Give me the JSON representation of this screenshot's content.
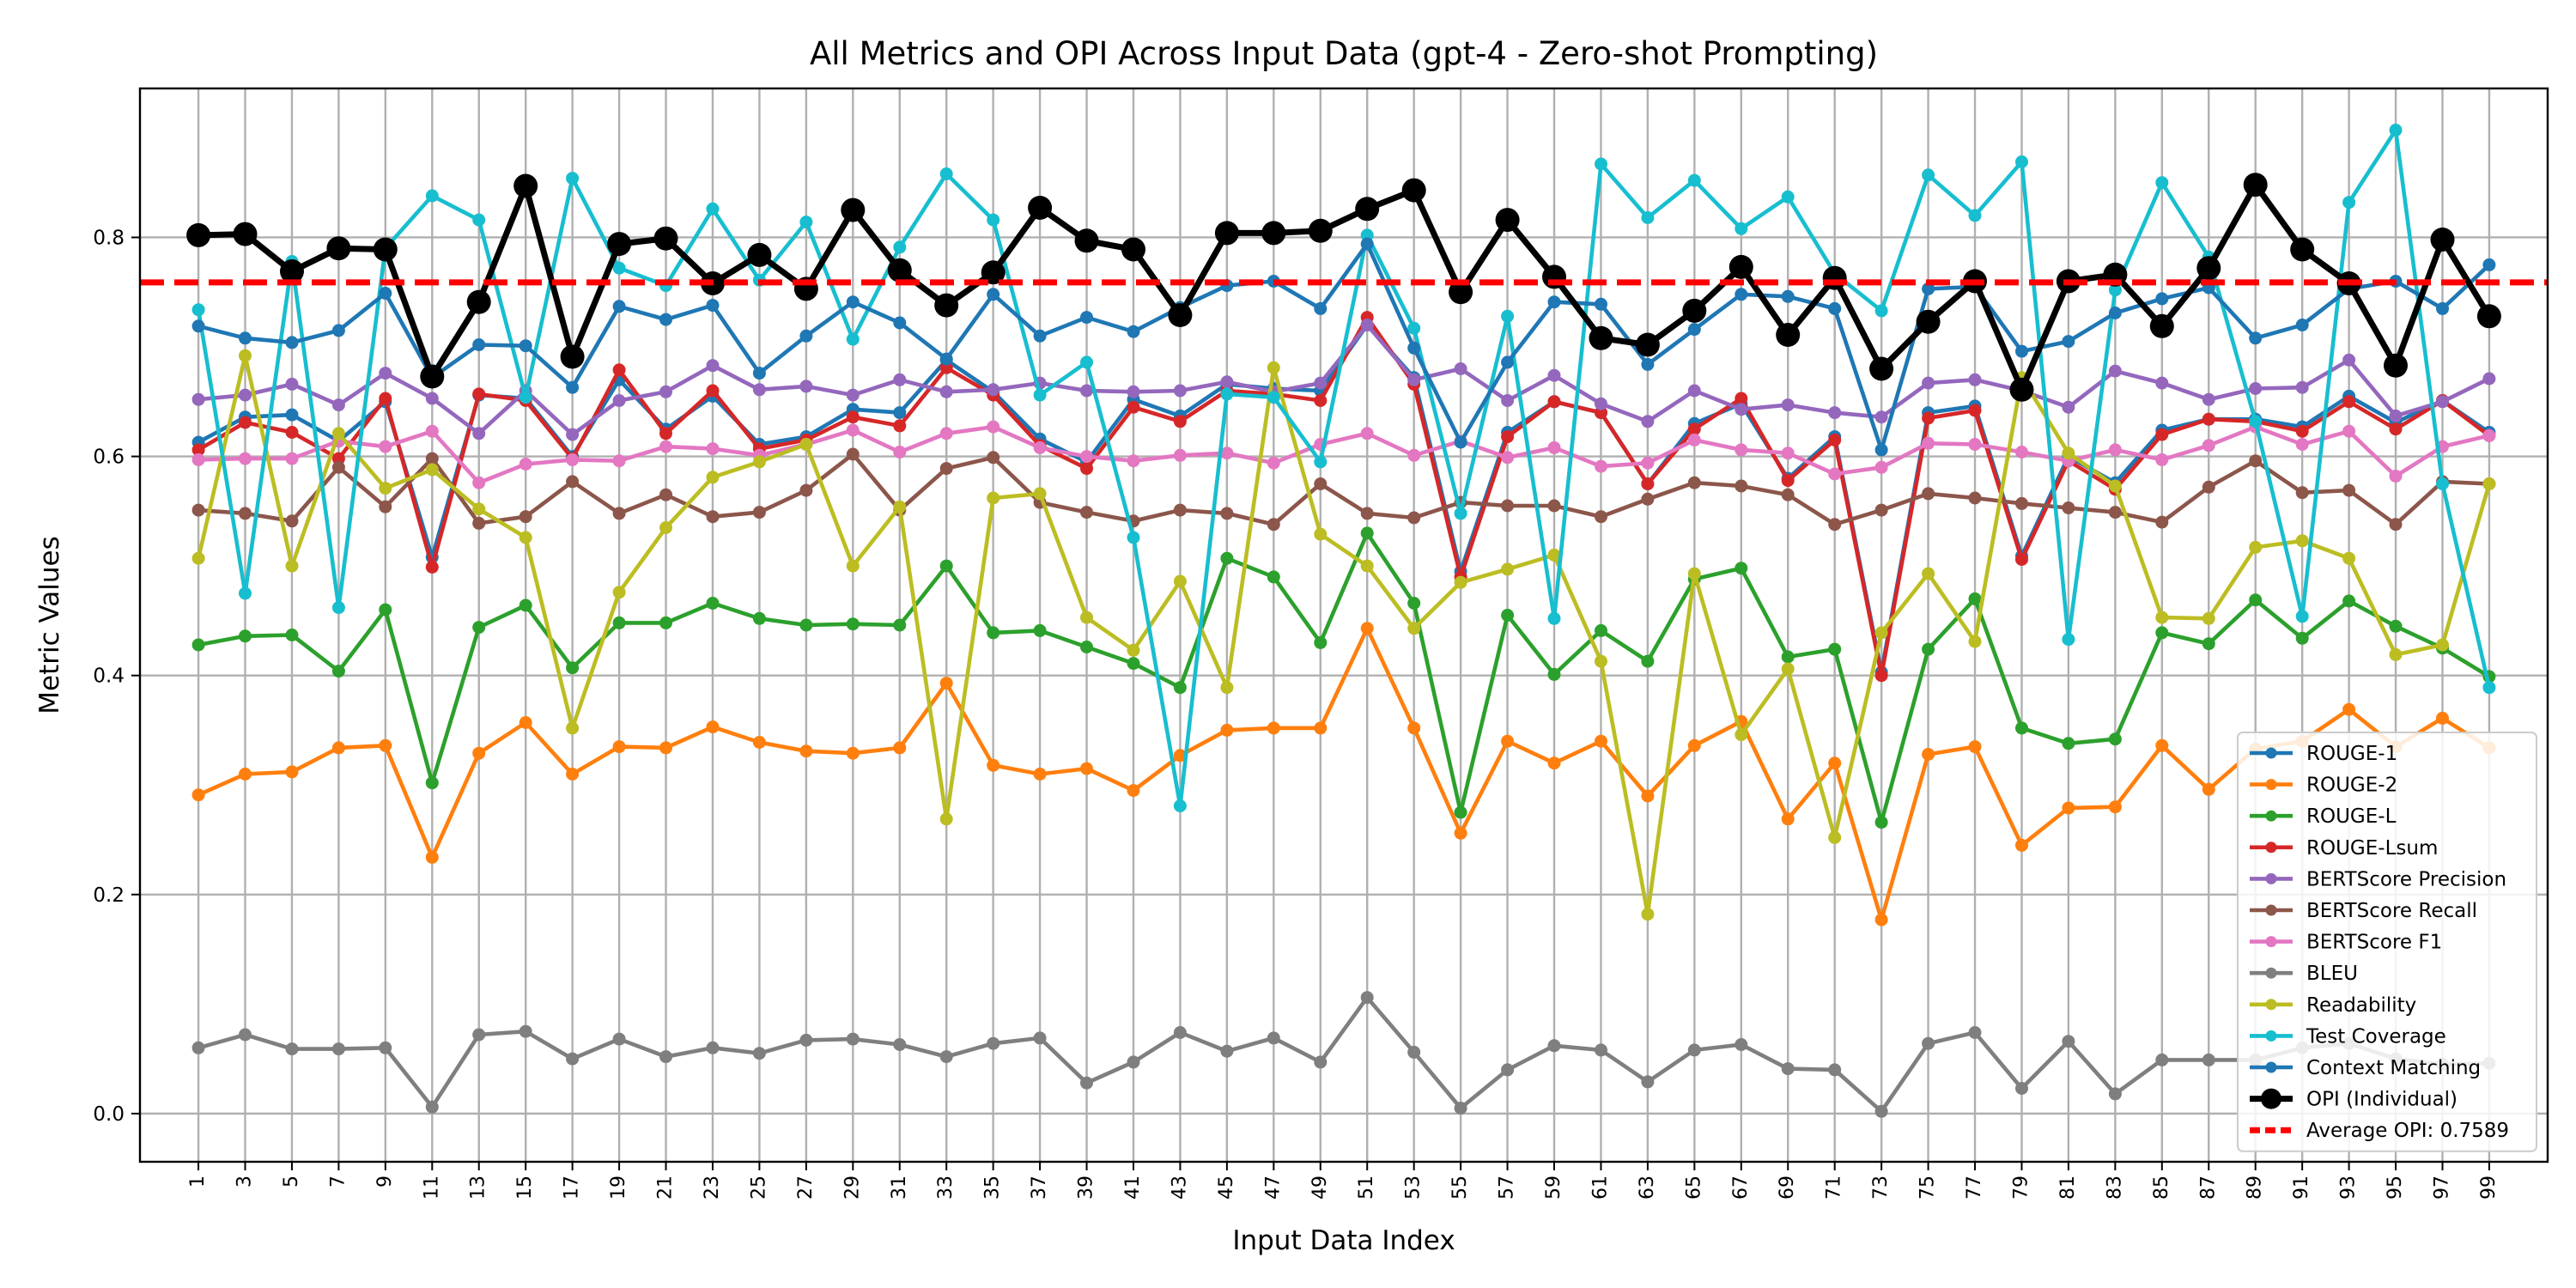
{
  "chart_data": {
    "type": "line",
    "title": "All Metrics and OPI Across Input Data (gpt-4 - Zero-shot Prompting)",
    "xlabel": "Input Data Index",
    "ylabel": "Metric Values",
    "x": [
      1,
      3,
      5,
      7,
      9,
      11,
      13,
      15,
      17,
      19,
      21,
      23,
      25,
      27,
      29,
      31,
      33,
      35,
      37,
      39,
      41,
      43,
      45,
      47,
      49,
      51,
      53,
      55,
      57,
      59,
      61,
      63,
      65,
      67,
      69,
      71,
      73,
      75,
      77,
      79,
      81,
      83,
      85,
      87,
      89,
      91,
      93,
      95,
      97,
      99
    ],
    "xlim": [
      -1.5,
      101.5
    ],
    "ylim": [
      -0.044,
      0.936
    ],
    "yticks": [
      0.0,
      0.2,
      0.4,
      0.6,
      0.8
    ],
    "ytick_labels": [
      "0.0",
      "0.2",
      "0.4",
      "0.6",
      "0.8"
    ],
    "grid": true,
    "legend_position": "lower-right",
    "series": [
      {
        "name": "ROUGE-1",
        "color": "#1f77b4",
        "values": [
          0.613,
          0.636,
          0.638,
          0.614,
          0.65,
          0.508,
          0.656,
          0.653,
          0.6,
          0.67,
          0.625,
          0.655,
          0.611,
          0.618,
          0.643,
          0.64,
          0.688,
          0.659,
          0.616,
          0.595,
          0.652,
          0.637,
          0.666,
          0.662,
          0.66,
          0.72,
          0.672,
          0.495,
          0.622,
          0.65,
          0.64,
          0.575,
          0.63,
          0.648,
          0.58,
          0.618,
          0.403,
          0.64,
          0.646,
          0.509,
          0.6,
          0.576,
          0.624,
          0.634,
          0.634,
          0.627,
          0.655,
          0.631,
          0.651,
          0.622
        ]
      },
      {
        "name": "ROUGE-2",
        "color": "#ff7f0e",
        "values": [
          0.291,
          0.31,
          0.312,
          0.334,
          0.336,
          0.234,
          0.329,
          0.357,
          0.31,
          0.335,
          0.334,
          0.353,
          0.339,
          0.331,
          0.329,
          0.334,
          0.393,
          0.318,
          0.31,
          0.315,
          0.295,
          0.327,
          0.35,
          0.352,
          0.352,
          0.443,
          0.352,
          0.256,
          0.34,
          0.32,
          0.34,
          0.29,
          0.336,
          0.358,
          0.269,
          0.32,
          0.177,
          0.328,
          0.335,
          0.245,
          0.279,
          0.28,
          0.336,
          0.296,
          0.333,
          0.34,
          0.369,
          0.335,
          0.361,
          0.334
        ]
      },
      {
        "name": "ROUGE-L",
        "color": "#2ca02c",
        "values": [
          0.428,
          0.436,
          0.437,
          0.404,
          0.46,
          0.302,
          0.444,
          0.464,
          0.407,
          0.448,
          0.448,
          0.466,
          0.452,
          0.446,
          0.447,
          0.446,
          0.5,
          0.439,
          0.441,
          0.426,
          0.411,
          0.389,
          0.507,
          0.49,
          0.43,
          0.53,
          0.466,
          0.275,
          0.455,
          0.401,
          0.441,
          0.413,
          0.488,
          0.498,
          0.417,
          0.424,
          0.266,
          0.424,
          0.47,
          0.352,
          0.338,
          0.342,
          0.439,
          0.429,
          0.469,
          0.434,
          0.468,
          0.445,
          0.425,
          0.399
        ]
      },
      {
        "name": "ROUGE-Lsum",
        "color": "#d62728",
        "values": [
          0.606,
          0.631,
          0.622,
          0.598,
          0.653,
          0.499,
          0.657,
          0.651,
          0.598,
          0.679,
          0.621,
          0.66,
          0.607,
          0.615,
          0.636,
          0.628,
          0.681,
          0.656,
          0.61,
          0.589,
          0.645,
          0.632,
          0.66,
          0.657,
          0.651,
          0.727,
          0.666,
          0.49,
          0.618,
          0.65,
          0.64,
          0.575,
          0.625,
          0.653,
          0.578,
          0.615,
          0.4,
          0.635,
          0.642,
          0.506,
          0.596,
          0.57,
          0.62,
          0.634,
          0.632,
          0.623,
          0.65,
          0.625,
          0.651,
          0.619
        ]
      },
      {
        "name": "BERTScore Precision",
        "color": "#9467bd",
        "values": [
          0.652,
          0.656,
          0.666,
          0.647,
          0.676,
          0.653,
          0.621,
          0.66,
          0.62,
          0.651,
          0.659,
          0.683,
          0.661,
          0.664,
          0.656,
          0.67,
          0.659,
          0.661,
          0.667,
          0.66,
          0.659,
          0.66,
          0.668,
          0.659,
          0.667,
          0.72,
          0.67,
          0.68,
          0.651,
          0.674,
          0.648,
          0.632,
          0.66,
          0.643,
          0.647,
          0.64,
          0.636,
          0.667,
          0.67,
          0.66,
          0.645,
          0.678,
          0.667,
          0.652,
          0.662,
          0.663,
          0.688,
          0.637,
          0.65,
          0.671
        ]
      },
      {
        "name": "BERTScore Recall",
        "color": "#8c564b",
        "values": [
          0.551,
          0.548,
          0.541,
          0.59,
          0.554,
          0.598,
          0.539,
          0.545,
          0.577,
          0.548,
          0.565,
          0.545,
          0.549,
          0.569,
          0.602,
          0.551,
          0.589,
          0.599,
          0.558,
          0.549,
          0.541,
          0.551,
          0.548,
          0.538,
          0.575,
          0.548,
          0.544,
          0.558,
          0.555,
          0.555,
          0.545,
          0.561,
          0.576,
          0.573,
          0.565,
          0.538,
          0.551,
          0.566,
          0.562,
          0.557,
          0.553,
          0.549,
          0.54,
          0.572,
          0.596,
          0.567,
          0.569,
          0.538,
          0.577,
          0.575
        ]
      },
      {
        "name": "BERTScore F1",
        "color": "#e377c2",
        "values": [
          0.597,
          0.598,
          0.598,
          0.614,
          0.609,
          0.623,
          0.576,
          0.593,
          0.597,
          0.596,
          0.609,
          0.607,
          0.601,
          0.611,
          0.624,
          0.604,
          0.621,
          0.627,
          0.608,
          0.6,
          0.596,
          0.601,
          0.603,
          0.594,
          0.611,
          0.621,
          0.601,
          0.614,
          0.599,
          0.608,
          0.591,
          0.594,
          0.615,
          0.606,
          0.603,
          0.584,
          0.59,
          0.612,
          0.611,
          0.604,
          0.596,
          0.606,
          0.597,
          0.61,
          0.627,
          0.611,
          0.623,
          0.582,
          0.609,
          0.619
        ]
      },
      {
        "name": "BLEU",
        "color": "#7f7f7f",
        "values": [
          0.06,
          0.072,
          0.059,
          0.059,
          0.06,
          0.006,
          0.072,
          0.075,
          0.05,
          0.068,
          0.052,
          0.06,
          0.055,
          0.067,
          0.068,
          0.063,
          0.052,
          0.064,
          0.069,
          0.028,
          0.047,
          0.074,
          0.057,
          0.069,
          0.047,
          0.106,
          0.056,
          0.005,
          0.04,
          0.062,
          0.058,
          0.029,
          0.058,
          0.063,
          0.041,
          0.04,
          0.002,
          0.064,
          0.074,
          0.023,
          0.066,
          0.018,
          0.049,
          0.049,
          0.049,
          0.06,
          0.064,
          0.05,
          0.045,
          0.046
        ]
      },
      {
        "name": "Readability",
        "color": "#bcbd22",
        "values": [
          0.507,
          0.692,
          0.5,
          0.621,
          0.571,
          0.588,
          0.552,
          0.526,
          0.352,
          0.476,
          0.535,
          0.581,
          0.595,
          0.611,
          0.5,
          0.554,
          0.269,
          0.562,
          0.566,
          0.453,
          0.423,
          0.486,
          0.389,
          0.681,
          0.529,
          0.5,
          0.443,
          0.485,
          0.497,
          0.51,
          0.413,
          0.182,
          0.493,
          0.346,
          0.406,
          0.252,
          0.439,
          0.493,
          0.431,
          0.672,
          0.603,
          0.573,
          0.453,
          0.452,
          0.517,
          0.523,
          0.507,
          0.419,
          0.428,
          0.575
        ]
      },
      {
        "name": "Test Coverage",
        "color": "#17becf",
        "values": [
          0.734,
          0.475,
          0.778,
          0.462,
          0.79,
          0.838,
          0.816,
          0.654,
          0.854,
          0.772,
          0.756,
          0.826,
          0.761,
          0.814,
          0.707,
          0.791,
          0.858,
          0.816,
          0.656,
          0.686,
          0.526,
          0.281,
          0.657,
          0.654,
          0.595,
          0.802,
          0.717,
          0.548,
          0.728,
          0.452,
          0.867,
          0.818,
          0.852,
          0.808,
          0.837,
          0.767,
          0.733,
          0.857,
          0.82,
          0.869,
          0.433,
          0.752,
          0.85,
          0.782,
          0.632,
          0.454,
          0.832,
          0.898,
          0.575,
          0.389
        ]
      },
      {
        "name": "Context Matching",
        "color": "#1f77b4",
        "values": [
          0.719,
          0.708,
          0.704,
          0.715,
          0.749,
          0.672,
          0.702,
          0.701,
          0.663,
          0.737,
          0.725,
          0.738,
          0.676,
          0.71,
          0.741,
          0.722,
          0.689,
          0.748,
          0.71,
          0.727,
          0.714,
          0.736,
          0.756,
          0.76,
          0.735,
          0.794,
          0.699,
          0.613,
          0.686,
          0.741,
          0.739,
          0.684,
          0.716,
          0.748,
          0.746,
          0.735,
          0.606,
          0.753,
          0.755,
          0.696,
          0.705,
          0.731,
          0.744,
          0.754,
          0.708,
          0.72,
          0.753,
          0.76,
          0.735,
          0.775
        ]
      },
      {
        "name": "OPI (Individual)",
        "color": "#000000",
        "values": [
          0.802,
          0.803,
          0.769,
          0.79,
          0.789,
          0.673,
          0.741,
          0.847,
          0.691,
          0.794,
          0.799,
          0.758,
          0.784,
          0.753,
          0.825,
          0.77,
          0.738,
          0.768,
          0.827,
          0.797,
          0.789,
          0.729,
          0.804,
          0.804,
          0.806,
          0.826,
          0.843,
          0.75,
          0.816,
          0.764,
          0.708,
          0.702,
          0.733,
          0.773,
          0.711,
          0.763,
          0.68,
          0.723,
          0.76,
          0.661,
          0.76,
          0.766,
          0.719,
          0.772,
          0.848,
          0.789,
          0.758,
          0.683,
          0.798,
          0.728
        ]
      }
    ],
    "average_line": {
      "name": "Average OPI: 0.7589",
      "value": 0.7589,
      "color": "#ff0000"
    }
  }
}
